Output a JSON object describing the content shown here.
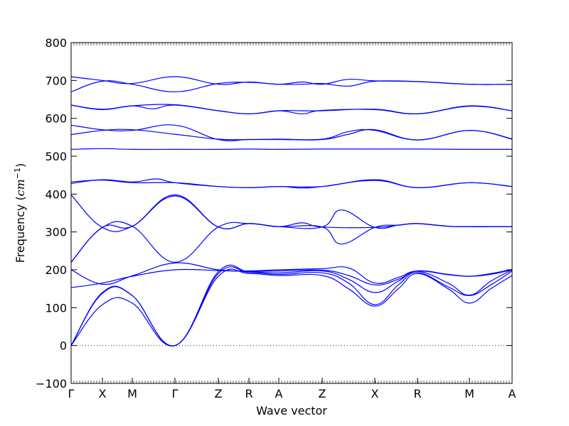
{
  "chart_data": {
    "type": "line",
    "xlabel": "Wave vector",
    "ylabel_prefix": "Frequency (",
    "ylabel_unit_base": "cm",
    "ylabel_unit_exp": "−1",
    "ylabel_suffix": ")",
    "ylim": [
      -100,
      800
    ],
    "xlim": [
      0,
      620
    ],
    "yticks": [
      -100,
      0,
      100,
      200,
      300,
      400,
      500,
      600,
      700,
      800
    ],
    "zero_line": true,
    "series_color": "#0000ff",
    "kpoints": [
      {
        "label": "Γ",
        "x": 0
      },
      {
        "label": "X",
        "x": 44
      },
      {
        "label": "M",
        "x": 86
      },
      {
        "label": "Γ",
        "x": 146
      },
      {
        "label": "Z",
        "x": 207
      },
      {
        "label": "R",
        "x": 250
      },
      {
        "label": "A",
        "x": 292
      },
      {
        "label": "Z",
        "x": 353
      },
      {
        "label": "X",
        "x": 427
      },
      {
        "label": "R",
        "x": 487
      },
      {
        "label": "M",
        "x": 560
      },
      {
        "label": "A",
        "x": 620
      }
    ],
    "series": [
      {
        "points": [
          [
            0,
            0
          ],
          [
            44,
            108
          ],
          [
            86,
            112
          ],
          [
            146,
            0
          ],
          [
            207,
            183
          ],
          [
            250,
            190
          ],
          [
            292,
            185
          ],
          [
            353,
            185
          ],
          [
            390,
            150
          ],
          [
            427,
            104
          ],
          [
            460,
            150
          ],
          [
            487,
            190
          ],
          [
            530,
            150
          ],
          [
            560,
            112
          ],
          [
            590,
            150
          ],
          [
            620,
            185
          ]
        ]
      },
      {
        "points": [
          [
            0,
            0
          ],
          [
            44,
            138
          ],
          [
            86,
            132
          ],
          [
            146,
            0
          ],
          [
            207,
            190
          ],
          [
            250,
            193
          ],
          [
            292,
            188
          ],
          [
            353,
            192
          ],
          [
            390,
            165
          ],
          [
            427,
            108
          ],
          [
            460,
            160
          ],
          [
            487,
            193
          ],
          [
            530,
            155
          ],
          [
            560,
            132
          ],
          [
            590,
            160
          ],
          [
            620,
            197
          ]
        ]
      },
      {
        "points": [
          [
            0,
            0
          ],
          [
            44,
            140
          ],
          [
            86,
            132
          ],
          [
            146,
            0
          ],
          [
            207,
            195
          ],
          [
            250,
            195
          ],
          [
            292,
            192
          ],
          [
            353,
            197
          ],
          [
            390,
            175
          ],
          [
            427,
            140
          ],
          [
            460,
            170
          ],
          [
            487,
            196
          ],
          [
            530,
            165
          ],
          [
            560,
            133
          ],
          [
            590,
            170
          ],
          [
            620,
            200
          ]
        ]
      },
      {
        "points": [
          [
            0,
            153
          ],
          [
            44,
            165
          ],
          [
            86,
            183
          ],
          [
            146,
            200
          ],
          [
            207,
            198
          ],
          [
            250,
            196
          ],
          [
            292,
            197
          ],
          [
            353,
            199
          ],
          [
            390,
            185
          ],
          [
            427,
            160
          ],
          [
            460,
            175
          ],
          [
            487,
            197
          ],
          [
            530,
            188
          ],
          [
            560,
            183
          ],
          [
            590,
            188
          ],
          [
            620,
            200
          ]
        ]
      },
      {
        "points": [
          [
            0,
            200
          ],
          [
            44,
            162
          ],
          [
            86,
            184
          ],
          [
            146,
            218
          ],
          [
            207,
            200
          ],
          [
            250,
            197
          ],
          [
            292,
            200
          ],
          [
            353,
            203
          ],
          [
            390,
            205
          ],
          [
            427,
            165
          ],
          [
            460,
            180
          ],
          [
            487,
            197
          ],
          [
            530,
            187
          ],
          [
            560,
            183
          ],
          [
            590,
            190
          ],
          [
            620,
            201
          ]
        ]
      },
      {
        "points": [
          [
            0,
            220
          ],
          [
            44,
            312
          ],
          [
            86,
            315
          ],
          [
            146,
            220
          ],
          [
            207,
            313
          ],
          [
            250,
            322
          ],
          [
            292,
            314
          ],
          [
            353,
            313
          ],
          [
            380,
            268
          ],
          [
            427,
            312
          ],
          [
            460,
            318
          ],
          [
            487,
            322
          ],
          [
            530,
            315
          ],
          [
            560,
            314
          ],
          [
            590,
            314
          ],
          [
            620,
            314
          ]
        ]
      },
      {
        "points": [
          [
            0,
            220
          ],
          [
            44,
            312
          ],
          [
            86,
            315
          ],
          [
            146,
            395
          ],
          [
            207,
            313
          ],
          [
            250,
            322
          ],
          [
            292,
            314
          ],
          [
            353,
            313
          ],
          [
            380,
            358
          ],
          [
            427,
            312
          ],
          [
            460,
            318
          ],
          [
            487,
            322
          ],
          [
            530,
            315
          ],
          [
            560,
            314
          ],
          [
            590,
            314
          ],
          [
            620,
            314
          ]
        ]
      },
      {
        "points": [
          [
            0,
            398
          ],
          [
            44,
            312
          ],
          [
            86,
            315
          ],
          [
            146,
            398
          ],
          [
            207,
            313
          ],
          [
            250,
            322
          ],
          [
            292,
            314
          ],
          [
            325,
            324
          ],
          [
            353,
            313
          ],
          [
            427,
            312
          ],
          [
            460,
            318
          ],
          [
            487,
            322
          ],
          [
            530,
            315
          ],
          [
            560,
            314
          ],
          [
            590,
            314
          ],
          [
            620,
            314
          ]
        ]
      },
      {
        "points": [
          [
            0,
            428
          ],
          [
            44,
            438
          ],
          [
            86,
            432
          ],
          [
            120,
            440
          ],
          [
            146,
            430
          ],
          [
            207,
            420
          ],
          [
            250,
            417
          ],
          [
            292,
            420
          ],
          [
            353,
            420
          ],
          [
            427,
            438
          ],
          [
            487,
            417
          ],
          [
            560,
            430
          ],
          [
            620,
            420
          ]
        ]
      },
      {
        "points": [
          [
            0,
            432
          ],
          [
            44,
            437
          ],
          [
            86,
            430
          ],
          [
            146,
            430
          ],
          [
            207,
            420
          ],
          [
            250,
            417
          ],
          [
            292,
            420
          ],
          [
            325,
            416
          ],
          [
            353,
            420
          ],
          [
            427,
            436
          ],
          [
            487,
            417
          ],
          [
            560,
            430
          ],
          [
            620,
            420
          ]
        ]
      },
      {
        "points": [
          [
            0,
            518
          ],
          [
            44,
            520
          ],
          [
            86,
            518
          ],
          [
            146,
            518
          ],
          [
            207,
            518
          ],
          [
            250,
            519
          ],
          [
            292,
            518
          ],
          [
            353,
            519
          ],
          [
            427,
            519
          ],
          [
            487,
            519
          ],
          [
            560,
            518
          ],
          [
            620,
            518
          ]
        ]
      },
      {
        "points": [
          [
            0,
            557
          ],
          [
            44,
            568
          ],
          [
            86,
            570
          ],
          [
            146,
            558
          ],
          [
            207,
            545
          ],
          [
            250,
            544
          ],
          [
            292,
            545
          ],
          [
            353,
            545
          ],
          [
            390,
            565
          ],
          [
            427,
            568
          ],
          [
            487,
            543
          ],
          [
            560,
            568
          ],
          [
            620,
            545
          ]
        ]
      },
      {
        "points": [
          [
            0,
            582
          ],
          [
            44,
            570
          ],
          [
            86,
            568
          ],
          [
            146,
            582
          ],
          [
            207,
            544
          ],
          [
            250,
            544
          ],
          [
            292,
            544
          ],
          [
            353,
            544
          ],
          [
            390,
            558
          ],
          [
            427,
            570
          ],
          [
            487,
            543
          ],
          [
            560,
            568
          ],
          [
            620,
            546
          ]
        ]
      },
      {
        "points": [
          [
            0,
            635
          ],
          [
            44,
            624
          ],
          [
            86,
            633
          ],
          [
            115,
            625
          ],
          [
            146,
            635
          ],
          [
            207,
            620
          ],
          [
            250,
            612
          ],
          [
            292,
            620
          ],
          [
            325,
            612
          ],
          [
            353,
            621
          ],
          [
            427,
            623
          ],
          [
            487,
            612
          ],
          [
            560,
            633
          ],
          [
            620,
            620
          ]
        ]
      },
      {
        "points": [
          [
            0,
            635
          ],
          [
            44,
            623
          ],
          [
            86,
            633
          ],
          [
            146,
            636
          ],
          [
            207,
            620
          ],
          [
            250,
            612
          ],
          [
            292,
            620
          ],
          [
            325,
            620
          ],
          [
            353,
            620
          ],
          [
            427,
            624
          ],
          [
            487,
            612
          ],
          [
            560,
            632
          ],
          [
            620,
            620
          ]
        ]
      },
      {
        "points": [
          [
            0,
            710
          ],
          [
            44,
            700
          ],
          [
            86,
            692
          ],
          [
            146,
            710
          ],
          [
            207,
            690
          ],
          [
            250,
            696
          ],
          [
            292,
            690
          ],
          [
            325,
            696
          ],
          [
            353,
            690
          ],
          [
            390,
            703
          ],
          [
            427,
            699
          ],
          [
            487,
            697
          ],
          [
            560,
            690
          ],
          [
            620,
            690
          ]
        ]
      },
      {
        "points": [
          [
            0,
            670
          ],
          [
            44,
            698
          ],
          [
            86,
            690
          ],
          [
            146,
            670
          ],
          [
            207,
            692
          ],
          [
            250,
            695
          ],
          [
            292,
            690
          ],
          [
            325,
            690
          ],
          [
            353,
            692
          ],
          [
            390,
            685
          ],
          [
            427,
            698
          ],
          [
            487,
            697
          ],
          [
            560,
            690
          ],
          [
            620,
            690
          ]
        ]
      }
    ]
  }
}
